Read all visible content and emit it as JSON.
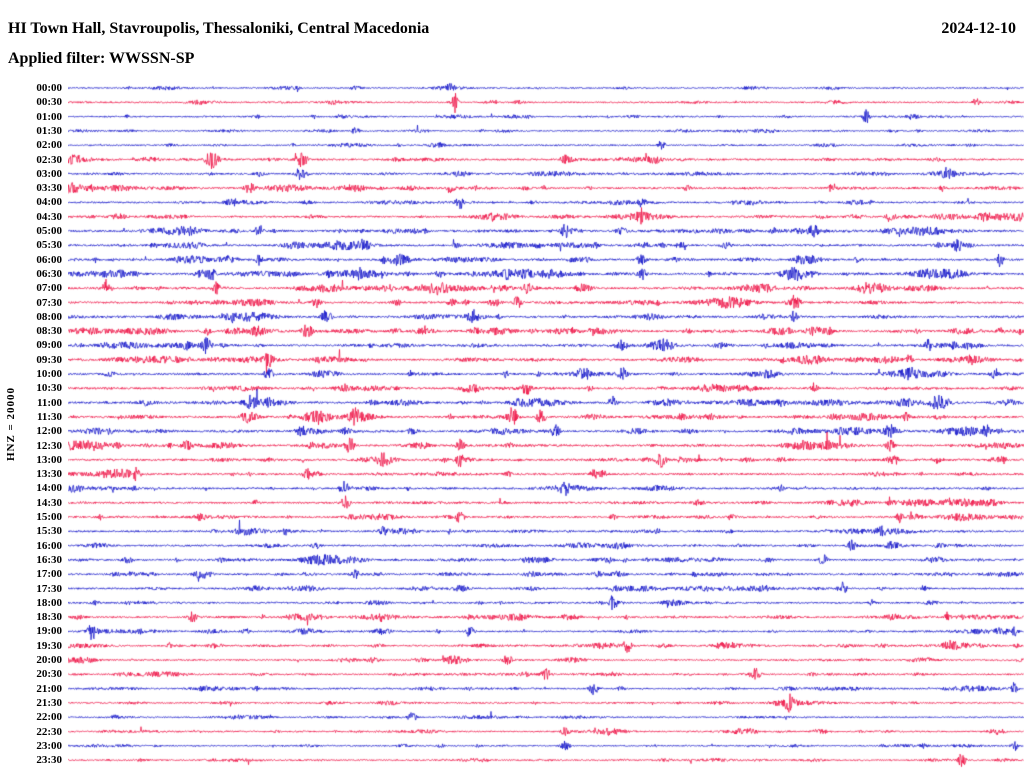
{
  "header": {
    "title": "HI Town Hall, Stavroupolis, Thessaloniki, Central Macedonia",
    "date": "2024-12-10",
    "filter": "Applied filter: WWSSN-SP"
  },
  "axis": {
    "scale_label": "HNZ = 20000"
  },
  "chart_data": {
    "type": "line",
    "variant": "helicorder_dayplot",
    "title": "HI Town Hall, Stavroupolis, Thessaloniki, Central Macedonia",
    "date": "2024-12-10",
    "applied_filter": "WWSSN-SP",
    "channel_scale": "HNZ = 20000",
    "minutes_per_line": 30,
    "lines": 48,
    "grid": false,
    "legend": "none",
    "trace_colors": {
      "blue": "#1012c8",
      "red": "#ee0e42"
    },
    "rows": [
      {
        "time": "00:00",
        "color": "blue",
        "seed": 4021,
        "activity": 0.55,
        "events": [
          [
            0.4,
            5,
            3
          ]
        ]
      },
      {
        "time": "00:30",
        "color": "red",
        "seed": 1187,
        "activity": 0.6,
        "events": [
          [
            0.405,
            9,
            2.5
          ],
          [
            0.95,
            4,
            4
          ]
        ]
      },
      {
        "time": "01:00",
        "color": "blue",
        "seed": 2953,
        "activity": 0.5,
        "events": [
          [
            0.835,
            8,
            3
          ]
        ]
      },
      {
        "time": "01:30",
        "color": "blue",
        "seed": 773,
        "activity": 0.45,
        "events": [
          [
            0.3,
            3,
            3
          ]
        ]
      },
      {
        "time": "02:00",
        "color": "blue",
        "seed": 3499,
        "activity": 0.55,
        "events": [
          [
            0.62,
            4,
            3
          ]
        ]
      },
      {
        "time": "02:30",
        "color": "red",
        "seed": 911,
        "activity": 0.9,
        "events": [
          [
            0.15,
            9,
            6
          ],
          [
            0.245,
            8,
            5
          ],
          [
            0.52,
            5,
            4
          ]
        ]
      },
      {
        "time": "03:00",
        "color": "blue",
        "seed": 2081,
        "activity": 0.8,
        "events": [
          [
            0.245,
            5,
            5
          ],
          [
            0.92,
            4,
            4
          ]
        ]
      },
      {
        "time": "03:30",
        "color": "red",
        "seed": 1567,
        "activity": 0.9,
        "events": [
          [
            0.19,
            5,
            5
          ],
          [
            0.4,
            5,
            4
          ],
          [
            0.8,
            5,
            4
          ]
        ]
      },
      {
        "time": "04:00",
        "color": "blue",
        "seed": 3307,
        "activity": 0.85,
        "events": [
          [
            0.41,
            6,
            4
          ],
          [
            0.6,
            5,
            4
          ]
        ]
      },
      {
        "time": "04:30",
        "color": "red",
        "seed": 619,
        "activity": 0.9,
        "events": [
          [
            0.6,
            6,
            4
          ],
          [
            0.86,
            5,
            4
          ]
        ]
      },
      {
        "time": "05:00",
        "color": "blue",
        "seed": 2741,
        "activity": 1.0,
        "events": [
          [
            0.2,
            6,
            4
          ],
          [
            0.52,
            5,
            4
          ],
          [
            0.78,
            5,
            4
          ]
        ]
      },
      {
        "time": "05:30",
        "color": "blue",
        "seed": 1289,
        "activity": 1.0,
        "events": [
          [
            0.31,
            5,
            4
          ],
          [
            0.93,
            7,
            4
          ]
        ]
      },
      {
        "time": "06:00",
        "color": "blue",
        "seed": 3881,
        "activity": 1.05,
        "events": [
          [
            0.6,
            5,
            4
          ],
          [
            0.975,
            7,
            3
          ]
        ]
      },
      {
        "time": "06:30",
        "color": "blue",
        "seed": 457,
        "activity": 1.1,
        "events": [
          [
            0.15,
            6,
            4
          ],
          [
            0.6,
            6,
            4
          ]
        ]
      },
      {
        "time": "07:00",
        "color": "red",
        "seed": 2203,
        "activity": 1.1,
        "events": [
          [
            0.04,
            7,
            4
          ],
          [
            0.155,
            6,
            4
          ],
          [
            0.48,
            5,
            4
          ]
        ]
      },
      {
        "time": "07:30",
        "color": "red",
        "seed": 1733,
        "activity": 1.05,
        "events": [
          [
            0.26,
            5,
            4
          ],
          [
            0.47,
            6,
            4
          ],
          [
            0.76,
            5,
            4
          ]
        ]
      },
      {
        "time": "08:00",
        "color": "blue",
        "seed": 3023,
        "activity": 1.0,
        "events": [
          [
            0.27,
            7,
            5
          ],
          [
            0.76,
            6,
            4
          ]
        ]
      },
      {
        "time": "08:30",
        "color": "red",
        "seed": 829,
        "activity": 1.05,
        "events": [
          [
            0.25,
            7,
            5
          ],
          [
            0.55,
            5,
            4
          ]
        ]
      },
      {
        "time": "09:00",
        "color": "blue",
        "seed": 2617,
        "activity": 1.0,
        "events": [
          [
            0.145,
            8,
            4
          ],
          [
            0.58,
            5,
            4
          ],
          [
            0.9,
            5,
            3
          ]
        ]
      },
      {
        "time": "09:30",
        "color": "red",
        "seed": 1409,
        "activity": 1.0,
        "events": [
          [
            0.21,
            7,
            4
          ],
          [
            0.88,
            5,
            3
          ]
        ]
      },
      {
        "time": "10:00",
        "color": "blue",
        "seed": 3697,
        "activity": 1.0,
        "events": [
          [
            0.21,
            6,
            4
          ],
          [
            0.58,
            6,
            4
          ],
          [
            0.97,
            5,
            3
          ]
        ]
      },
      {
        "time": "10:30",
        "color": "red",
        "seed": 547,
        "activity": 1.0,
        "events": [
          [
            0.48,
            7,
            4
          ],
          [
            0.78,
            5,
            4
          ]
        ]
      },
      {
        "time": "11:00",
        "color": "blue",
        "seed": 2347,
        "activity": 1.05,
        "events": [
          [
            0.19,
            7,
            4
          ],
          [
            0.57,
            6,
            4
          ]
        ]
      },
      {
        "time": "11:30",
        "color": "red",
        "seed": 1151,
        "activity": 1.1,
        "events": [
          [
            0.465,
            9,
            5
          ],
          [
            0.495,
            8,
            4
          ],
          [
            0.3,
            5,
            4
          ]
        ]
      },
      {
        "time": "12:00",
        "color": "blue",
        "seed": 3169,
        "activity": 1.05,
        "events": [
          [
            0.51,
            7,
            4
          ],
          [
            0.86,
            5,
            4
          ],
          [
            0.96,
            6,
            3
          ]
        ]
      },
      {
        "time": "12:30",
        "color": "red",
        "seed": 683,
        "activity": 1.05,
        "events": [
          [
            0.295,
            8,
            4
          ],
          [
            0.41,
            6,
            4
          ],
          [
            0.86,
            6,
            4
          ]
        ]
      },
      {
        "time": "13:00",
        "color": "red",
        "seed": 2467,
        "activity": 1.0,
        "events": [
          [
            0.41,
            6,
            4
          ],
          [
            0.62,
            5,
            4
          ]
        ]
      },
      {
        "time": "13:30",
        "color": "red",
        "seed": 1871,
        "activity": 1.0,
        "events": [
          [
            0.25,
            5,
            4
          ],
          [
            0.55,
            5,
            4
          ]
        ]
      },
      {
        "time": "14:00",
        "color": "blue",
        "seed": 3547,
        "activity": 1.0,
        "events": [
          [
            0.29,
            8,
            5
          ],
          [
            0.52,
            5,
            4
          ]
        ]
      },
      {
        "time": "14:30",
        "color": "red",
        "seed": 509,
        "activity": 1.0,
        "events": [
          [
            0.29,
            7,
            4
          ],
          [
            0.86,
            5,
            3
          ]
        ]
      },
      {
        "time": "15:00",
        "color": "red",
        "seed": 2129,
        "activity": 0.95,
        "events": [
          [
            0.41,
            6,
            4
          ],
          [
            0.87,
            5,
            3
          ]
        ]
      },
      {
        "time": "15:30",
        "color": "blue",
        "seed": 1693,
        "activity": 0.9,
        "events": [
          [
            0.33,
            4,
            4
          ]
        ]
      },
      {
        "time": "16:00",
        "color": "blue",
        "seed": 3259,
        "activity": 0.9,
        "events": [
          [
            0.82,
            5,
            4
          ]
        ]
      },
      {
        "time": "16:30",
        "color": "blue",
        "seed": 877,
        "activity": 0.9,
        "events": [
          [
            0.79,
            6,
            4
          ]
        ]
      },
      {
        "time": "17:00",
        "color": "blue",
        "seed": 2539,
        "activity": 0.85,
        "events": [
          [
            0.3,
            4,
            4
          ]
        ]
      },
      {
        "time": "17:30",
        "color": "blue",
        "seed": 1319,
        "activity": 0.85,
        "events": [
          [
            0.81,
            7,
            4
          ]
        ]
      },
      {
        "time": "18:00",
        "color": "blue",
        "seed": 3823,
        "activity": 0.8,
        "events": [
          [
            0.57,
            6,
            4
          ]
        ]
      },
      {
        "time": "18:30",
        "color": "red",
        "seed": 647,
        "activity": 0.8,
        "events": [
          [
            0.13,
            6,
            4
          ],
          [
            0.92,
            5,
            3
          ]
        ]
      },
      {
        "time": "19:00",
        "color": "blue",
        "seed": 2297,
        "activity": 0.75,
        "events": [
          [
            0.025,
            8,
            4
          ],
          [
            0.42,
            5,
            4
          ],
          [
            0.99,
            6,
            3
          ]
        ]
      },
      {
        "time": "19:30",
        "color": "red",
        "seed": 1097,
        "activity": 0.7,
        "events": [
          [
            0.585,
            6,
            4
          ]
        ]
      },
      {
        "time": "20:00",
        "color": "red",
        "seed": 3391,
        "activity": 0.7,
        "events": [
          [
            0.46,
            6,
            4
          ]
        ]
      },
      {
        "time": "20:30",
        "color": "red",
        "seed": 757,
        "activity": 0.65,
        "events": [
          [
            0.5,
            6,
            4
          ],
          [
            0.72,
            5,
            4
          ]
        ]
      },
      {
        "time": "21:00",
        "color": "blue",
        "seed": 2659,
        "activity": 0.65,
        "events": [
          [
            0.55,
            8,
            4
          ],
          [
            0.99,
            6,
            3
          ]
        ]
      },
      {
        "time": "21:30",
        "color": "red",
        "seed": 1481,
        "activity": 0.6,
        "events": [
          [
            0.755,
            7,
            4
          ]
        ]
      },
      {
        "time": "22:00",
        "color": "blue",
        "seed": 3631,
        "activity": 0.55,
        "events": [
          [
            0.36,
            5,
            4
          ]
        ]
      },
      {
        "time": "22:30",
        "color": "red",
        "seed": 593,
        "activity": 0.55,
        "events": [
          [
            0.52,
            4,
            4
          ]
        ]
      },
      {
        "time": "23:00",
        "color": "blue",
        "seed": 2887,
        "activity": 0.5,
        "events": [
          [
            0.52,
            5,
            4
          ],
          [
            0.99,
            5,
            3
          ]
        ]
      },
      {
        "time": "23:30",
        "color": "red",
        "seed": 1231,
        "activity": 0.55,
        "events": [
          [
            0.935,
            7,
            4
          ]
        ]
      }
    ]
  }
}
